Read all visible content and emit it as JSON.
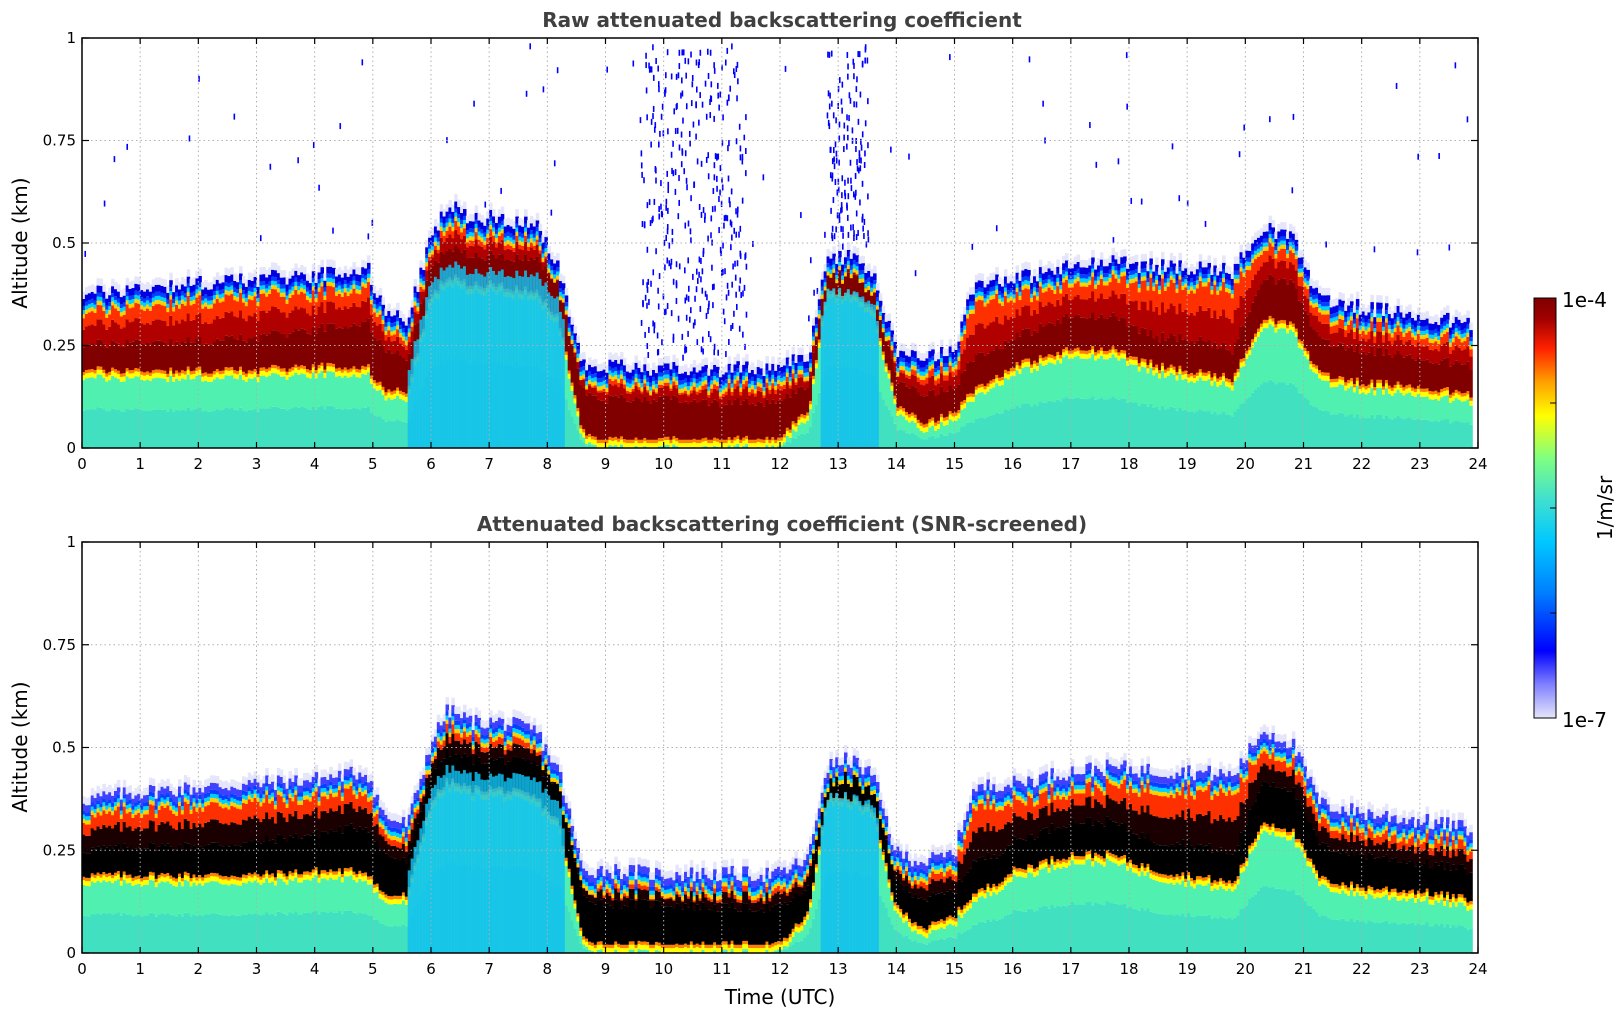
{
  "chart_data": [
    {
      "type": "heatmap",
      "title": "Raw attenuated backscattering coefficient",
      "xlabel": "",
      "ylabel": "Altitude (km)",
      "xlim": [
        0,
        24
      ],
      "ylim": [
        0,
        1
      ],
      "xticks": [
        "0",
        "1",
        "2",
        "3",
        "4",
        "5",
        "6",
        "7",
        "8",
        "9",
        "10",
        "11",
        "12",
        "13",
        "14",
        "15",
        "16",
        "17",
        "18",
        "19",
        "20",
        "21",
        "22",
        "23",
        "24"
      ],
      "yticks": [
        "0",
        "0.25",
        "0.5",
        "0.75",
        "1"
      ],
      "grid": true,
      "screened": false,
      "layer_hours": [
        0,
        1,
        2,
        3,
        4,
        4.9,
        5.2,
        5.6,
        6,
        6.3,
        6.7,
        7.2,
        7.8,
        8.2,
        8.6,
        9,
        10,
        11,
        12,
        12.5,
        12.8,
        13.2,
        13.6,
        14,
        14.5,
        15,
        15.3,
        15.7,
        16,
        17,
        17.7,
        18.5,
        19,
        19.8,
        20.3,
        20.8,
        21.3,
        22,
        23,
        23.9
      ],
      "layer_top_km": [
        0.36,
        0.38,
        0.39,
        0.4,
        0.41,
        0.43,
        0.32,
        0.3,
        0.5,
        0.58,
        0.55,
        0.55,
        0.53,
        0.43,
        0.19,
        0.19,
        0.18,
        0.18,
        0.18,
        0.22,
        0.44,
        0.46,
        0.42,
        0.23,
        0.21,
        0.23,
        0.38,
        0.4,
        0.4,
        0.43,
        0.44,
        0.43,
        0.43,
        0.42,
        0.53,
        0.5,
        0.35,
        0.33,
        0.31,
        0.29
      ],
      "layer_core_km": [
        0.23,
        0.24,
        0.24,
        0.25,
        0.27,
        0.29,
        0.22,
        0.2,
        0.42,
        0.47,
        0.45,
        0.45,
        0.44,
        0.38,
        0.12,
        0.1,
        0.1,
        0.09,
        0.09,
        0.14,
        0.4,
        0.4,
        0.38,
        0.15,
        0.11,
        0.13,
        0.2,
        0.22,
        0.25,
        0.3,
        0.3,
        0.25,
        0.25,
        0.22,
        0.4,
        0.38,
        0.24,
        0.22,
        0.2,
        0.18
      ],
      "layer_bottom_km": [
        0.17,
        0.17,
        0.17,
        0.17,
        0.18,
        0.18,
        0.12,
        0.12,
        0.35,
        0.4,
        0.38,
        0.38,
        0.36,
        0.3,
        0.02,
        0.0,
        0.0,
        0.0,
        0.0,
        0.08,
        0.36,
        0.36,
        0.33,
        0.09,
        0.04,
        0.07,
        0.12,
        0.15,
        0.18,
        0.22,
        0.22,
        0.18,
        0.17,
        0.15,
        0.3,
        0.28,
        0.16,
        0.14,
        0.13,
        0.11
      ]
    },
    {
      "type": "heatmap",
      "title": "Attenuated backscattering coefficient (SNR-screened)",
      "xlabel": "Time (UTC)",
      "ylabel": "Altitude (km)",
      "xlim": [
        0,
        24
      ],
      "ylim": [
        0,
        1
      ],
      "xticks": [
        "0",
        "1",
        "2",
        "3",
        "4",
        "5",
        "6",
        "7",
        "8",
        "9",
        "10",
        "11",
        "12",
        "13",
        "14",
        "15",
        "16",
        "17",
        "18",
        "19",
        "20",
        "21",
        "22",
        "23",
        "24"
      ],
      "yticks": [
        "0",
        "0.25",
        "0.5",
        "0.75",
        "1"
      ],
      "grid": true,
      "screened": true
    }
  ],
  "colorbar": {
    "label": "1/m/sr",
    "max_label": "1e-4",
    "min_label": "1e-7",
    "colors": [
      "#e6e6fa",
      "#8080ff",
      "#0000ff",
      "#0080ff",
      "#00c8ff",
      "#40e0d0",
      "#80ff80",
      "#ffff00",
      "#ffa000",
      "#ff2000",
      "#a00000",
      "#800000"
    ]
  }
}
